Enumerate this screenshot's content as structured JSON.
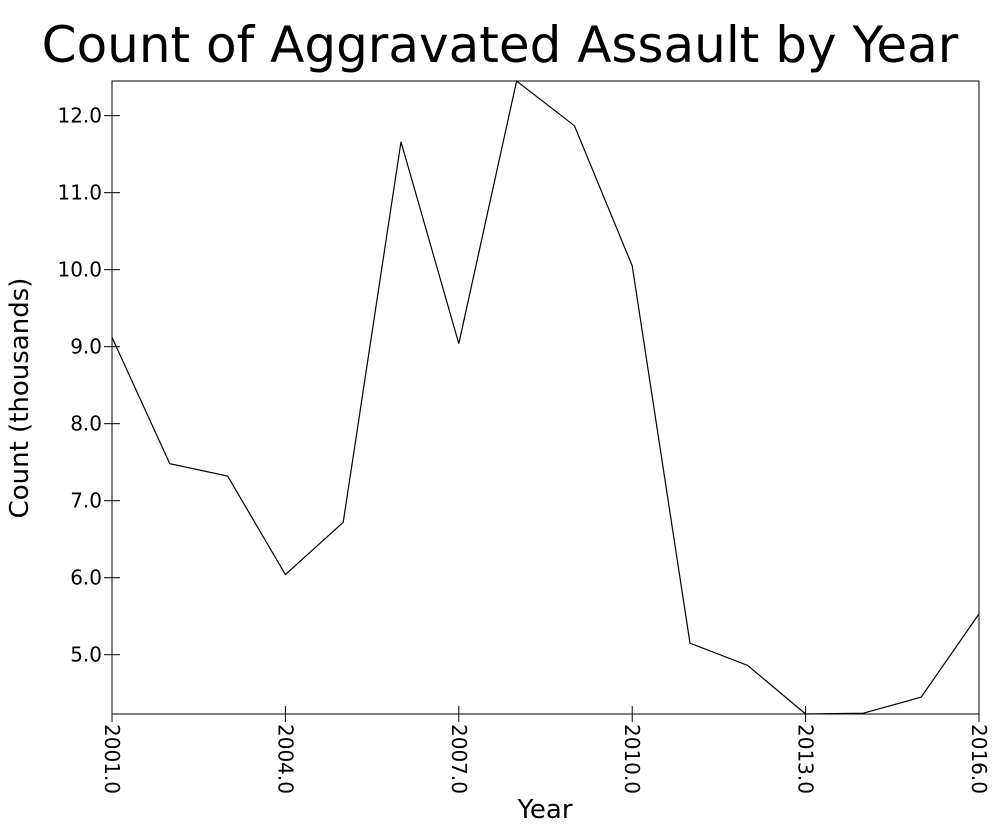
{
  "chart_data": {
    "type": "line",
    "title": "Count of Aggravated Assault by Year",
    "xlabel": "Year",
    "ylabel": "Count (thousands)",
    "x": [
      2001,
      2002,
      2003,
      2004,
      2005,
      2006,
      2007,
      2008,
      2009,
      2010,
      2011,
      2012,
      2013,
      2014,
      2015,
      2016
    ],
    "series": [
      {
        "values": [
          9.12,
          7.48,
          7.32,
          6.04,
          6.72,
          11.66,
          9.04,
          12.45,
          11.87,
          10.05,
          5.15,
          4.86,
          4.23,
          4.24,
          4.45,
          5.53
        ]
      }
    ],
    "xlim": [
      2001,
      2016
    ],
    "ylim": [
      4.23,
      12.45
    ],
    "xticks": [
      2001,
      2004,
      2007,
      2010,
      2013,
      2016
    ],
    "xtick_labels": [
      "2001.0",
      "2004.0",
      "2007.0",
      "2010.0",
      "2013.0",
      "2016.0"
    ],
    "yticks": [
      5,
      6,
      7,
      8,
      9,
      10,
      11,
      12
    ],
    "ytick_labels": [
      "5.0",
      "6.0",
      "7.0",
      "8.0",
      "9.0",
      "10.0",
      "11.0",
      "12.0"
    ],
    "grid": false,
    "line_color": "#000000",
    "legend": "none"
  }
}
